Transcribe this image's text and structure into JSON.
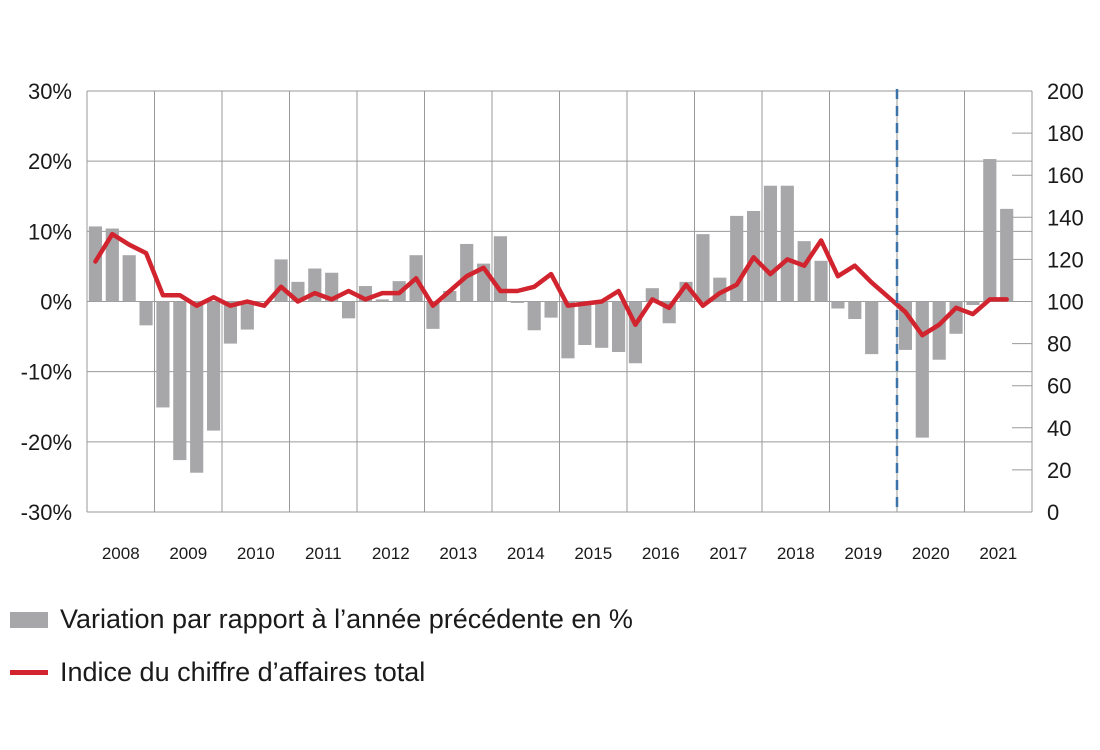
{
  "chart_data": {
    "type": "bar+line",
    "y_left": {
      "ticks": [
        "30%",
        "20%",
        "10%",
        "0%",
        "-10%",
        "-20%",
        "-30%"
      ],
      "ylim": [
        -30,
        30
      ]
    },
    "y_right": {
      "ticks": [
        "200",
        "180",
        "160",
        "140",
        "120",
        "100",
        "80",
        "60",
        "40",
        "20",
        "0"
      ],
      "ylim": [
        0,
        200
      ]
    },
    "years": [
      "2008",
      "2009",
      "2010",
      "2011",
      "2012",
      "2013",
      "2014",
      "2015",
      "2016",
      "2017",
      "2018",
      "2019",
      "2020",
      "2021"
    ],
    "quarters_per_year": 4,
    "marker_after_quarter_index": 47,
    "series": [
      {
        "name": "Variation par rapport à l’année précédente en %",
        "kind": "bar",
        "color": "#a7a7a9",
        "values": [
          10.7,
          10.4,
          6.6,
          -3.4,
          -15.1,
          -22.6,
          -24.4,
          -18.4,
          -6.0,
          -4.0,
          0,
          6.0,
          2.8,
          4.7,
          4.1,
          -2.4,
          2.2,
          0.3,
          2.9,
          6.6,
          -3.9,
          1.5,
          8.2,
          5.4,
          9.3,
          -0.2,
          -4.1,
          -2.3,
          -8.1,
          -6.2,
          -6.6,
          -7.2,
          -8.8,
          1.9,
          -3.1,
          2.8,
          9.6,
          3.4,
          12.2,
          12.9,
          16.5,
          16.5,
          8.6,
          5.8,
          -1.0,
          -2.5,
          -7.5,
          0,
          -6.9,
          -19.4,
          -8.3,
          -4.6,
          -0.5,
          20.3,
          13.2
        ]
      },
      {
        "name": "Indice du chiffre d’affaires total",
        "kind": "line",
        "color": "#d1242f",
        "values": [
          119,
          132,
          127,
          123,
          103,
          103,
          98,
          102,
          98,
          100,
          98,
          107,
          100,
          104,
          101,
          105,
          101,
          104,
          104,
          111,
          98,
          105,
          112,
          116,
          105,
          105,
          107,
          113,
          98,
          99,
          100,
          105,
          89,
          101,
          97,
          108,
          98,
          104,
          108,
          121,
          113,
          120,
          117,
          129,
          112,
          117,
          109,
          102,
          95,
          84,
          89,
          97,
          94,
          101,
          101
        ]
      }
    ],
    "legend_position": "bottom-left",
    "grid": true
  }
}
